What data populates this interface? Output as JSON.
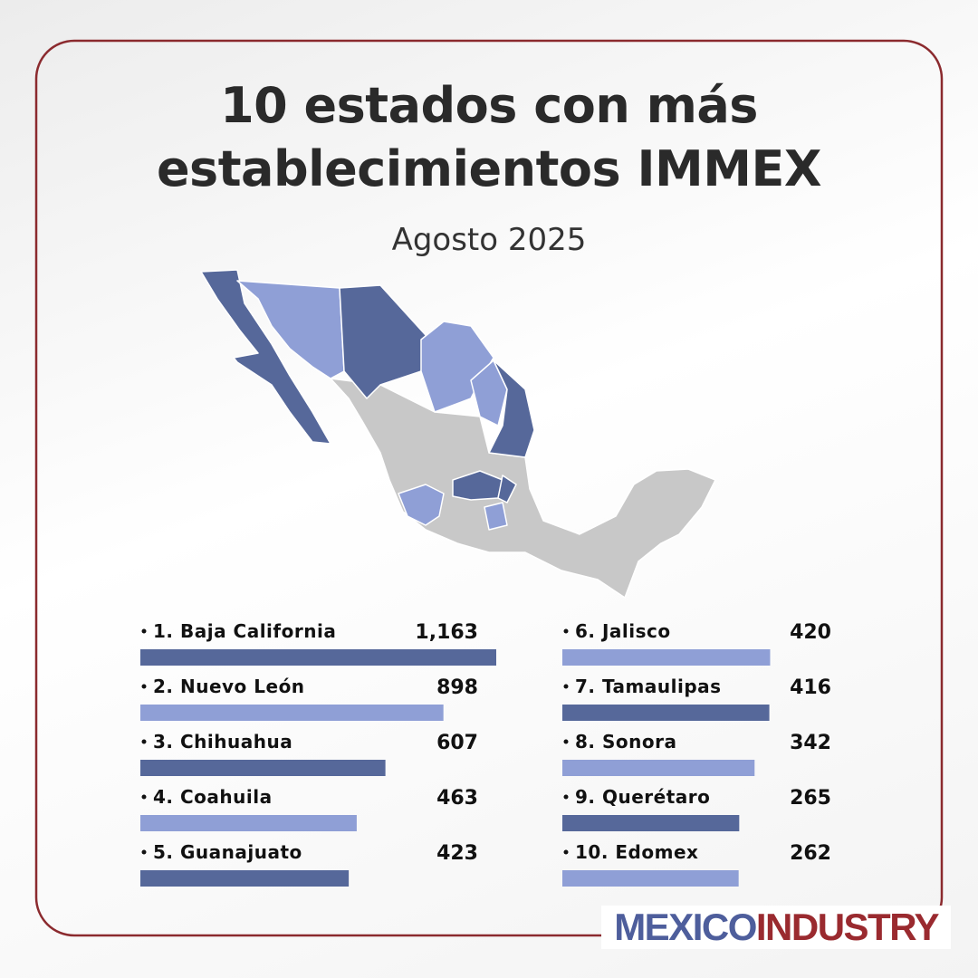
{
  "chart_data": {
    "type": "bar",
    "title": "10 estados con más establecimientos IMMEX",
    "subtitle": "Agosto 2025",
    "categories": [
      "1. Baja California",
      "2. Nuevo León",
      "3. Chihuahua",
      "4. Coahuila",
      "5. Guanajuato",
      "6. Jalisco",
      "7. Tamaulipas",
      "8. Sonora",
      "9. Querétaro",
      "10. Edomex"
    ],
    "values": [
      1163,
      898,
      607,
      463,
      423,
      420,
      416,
      342,
      265,
      262
    ],
    "value_labels": [
      "1,163",
      "898",
      "607",
      "463",
      "423",
      "420",
      "416",
      "342",
      "265",
      "262"
    ],
    "colors": [
      "#56689a",
      "#8f9fd6",
      "#56689a",
      "#8f9fd6",
      "#56689a",
      "#8f9fd6",
      "#56689a",
      "#8f9fd6",
      "#56689a",
      "#8f9fd6"
    ]
  },
  "brand": {
    "first": "MEXICO",
    "second": "INDUSTRY"
  }
}
